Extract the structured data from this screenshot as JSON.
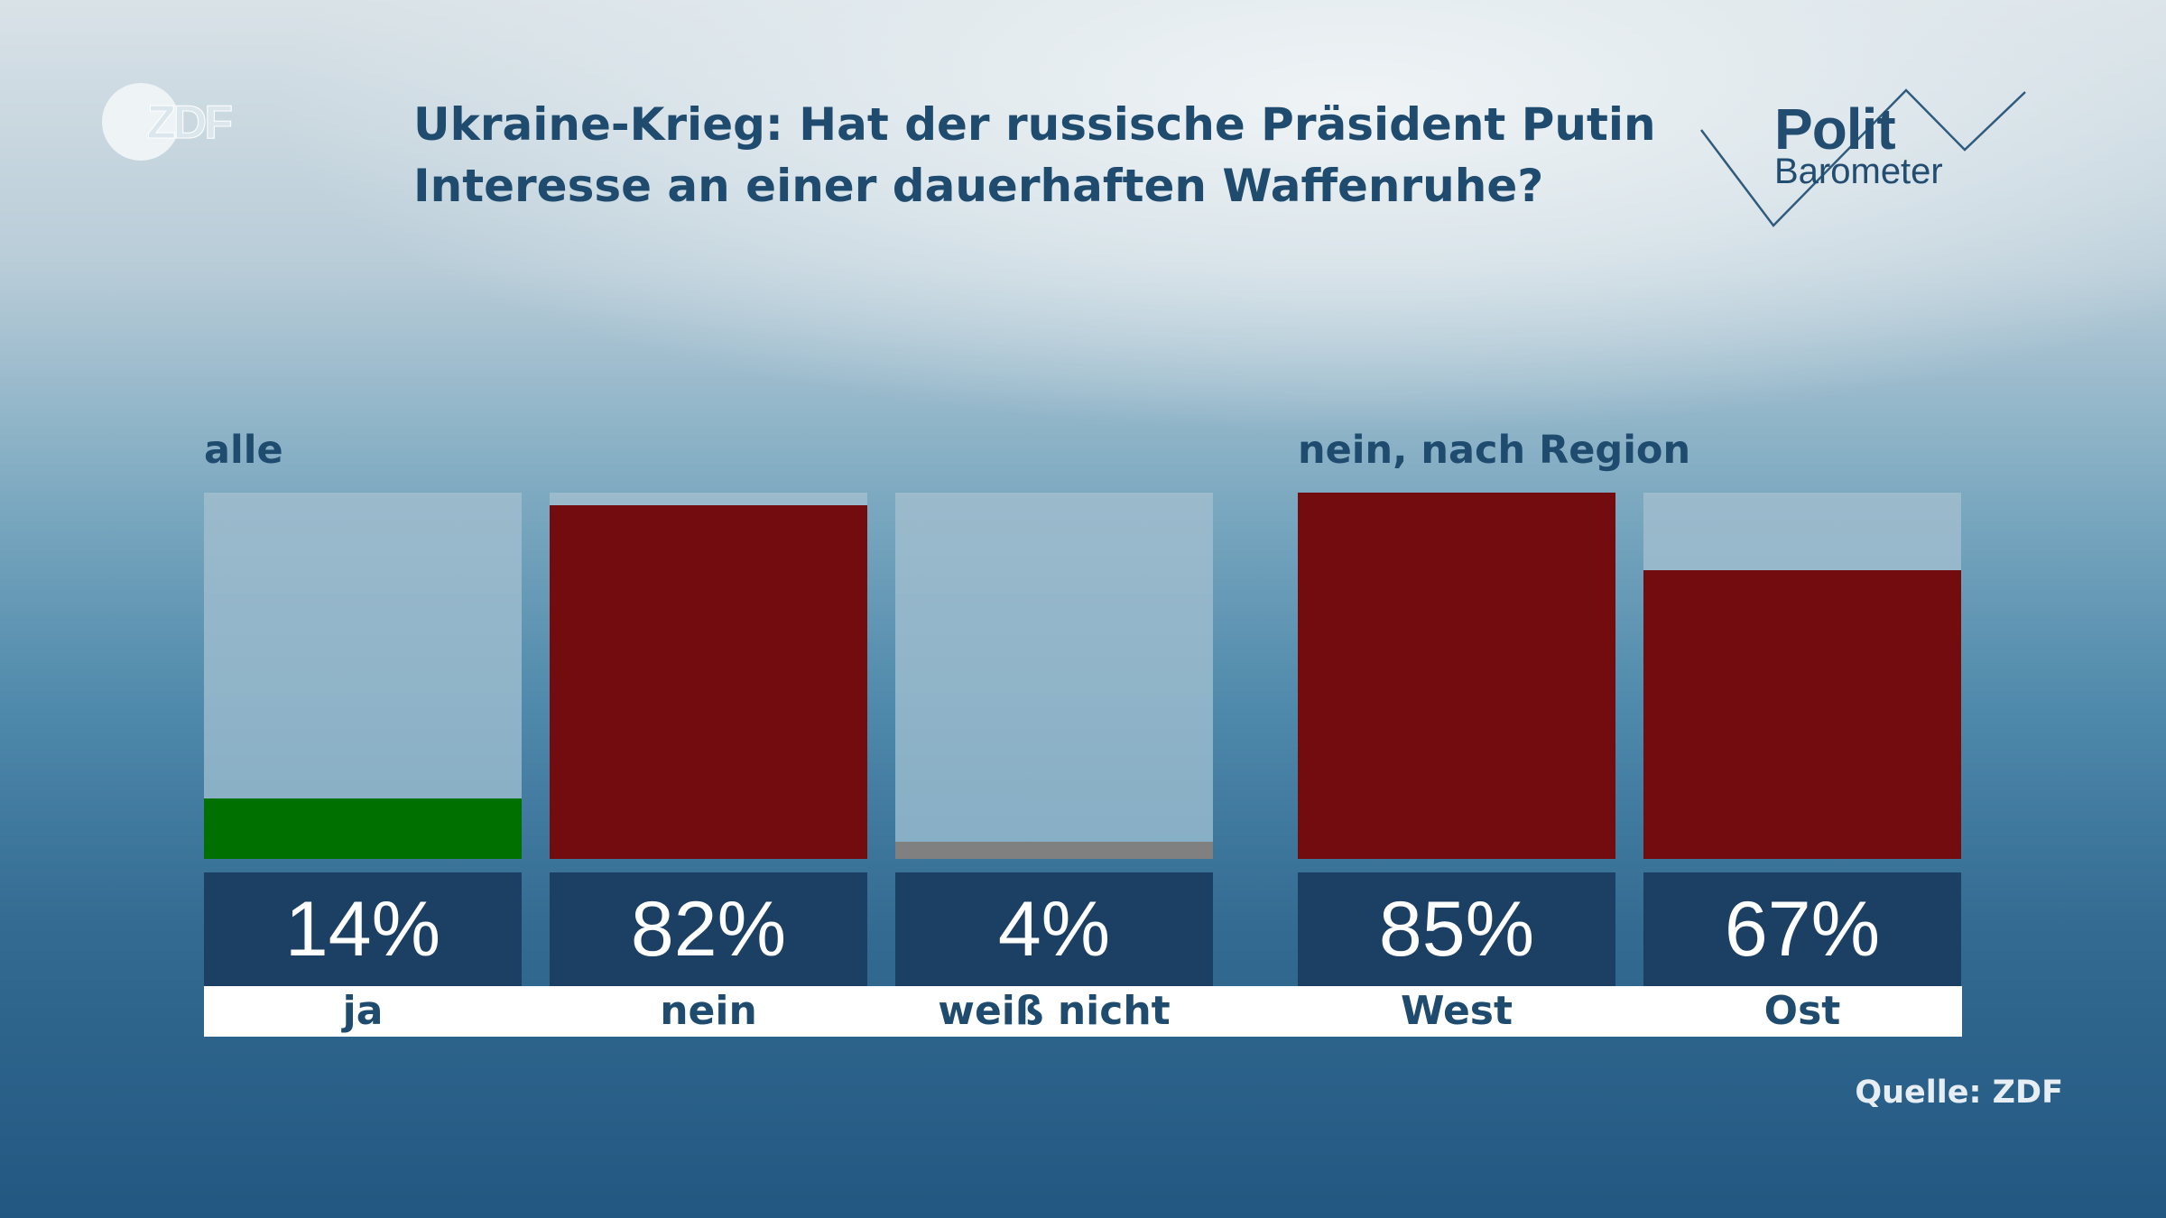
{
  "logo": {
    "brand": "ZDF"
  },
  "title": "Ukraine-Krieg: Hat der russische Präsident Putin Interesse an einer dauerhaften Waffenruhe?",
  "badge": {
    "line1": "Polit",
    "line2": "Barometer"
  },
  "source": "Quelle: ZDF",
  "colors": {
    "ja": "#007000",
    "nein": "#720c0e",
    "weiss_nicht": "#808080",
    "value_box": "#1c3f64",
    "title": "#1f4b6e"
  },
  "chart_data": [
    {
      "type": "bar",
      "title": "alle",
      "categories": [
        "ja",
        "nein",
        "weiß nicht"
      ],
      "values": [
        14,
        82,
        4
      ],
      "value_labels": [
        "14%",
        "82%",
        "4%"
      ],
      "colors": [
        "#007000",
        "#720c0e",
        "#808080"
      ],
      "ylim": [
        0,
        85
      ],
      "unit": "%"
    },
    {
      "type": "bar",
      "title": "nein, nach Region",
      "categories": [
        "West",
        "Ost"
      ],
      "values": [
        85,
        67
      ],
      "value_labels": [
        "85%",
        "67%"
      ],
      "colors": [
        "#720c0e",
        "#720c0e"
      ],
      "ylim": [
        0,
        85
      ],
      "unit": "%"
    }
  ]
}
